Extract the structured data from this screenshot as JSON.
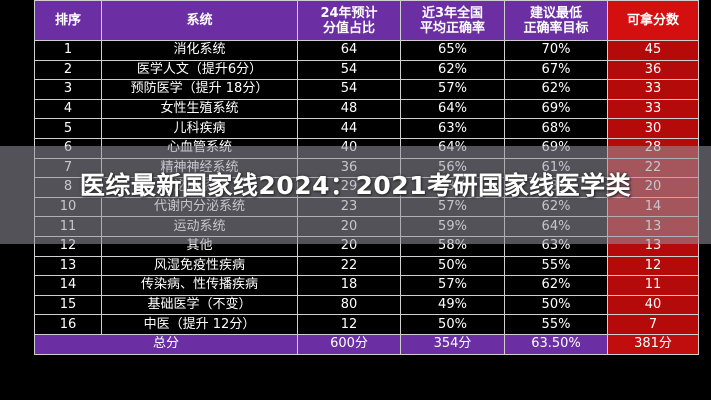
{
  "table": {
    "headers": [
      "排序",
      "系统",
      "24年预计\n分值占比",
      "近3年全国\n平均正确率",
      "建议最低\n正确率目标",
      "可拿分数"
    ],
    "rows": [
      [
        "1",
        "消化系统",
        "64",
        "65%",
        "70%",
        "45"
      ],
      [
        "2",
        "医学人文（提升6分）",
        "54",
        "62%",
        "67%",
        "36"
      ],
      [
        "3",
        "预防医学（提升 18分）",
        "54",
        "57%",
        "62%",
        "33"
      ],
      [
        "4",
        "女性生殖系统",
        "48",
        "64%",
        "69%",
        "33"
      ],
      [
        "5",
        "儿科疾病",
        "44",
        "63%",
        "68%",
        "30"
      ],
      [
        "6",
        "心血管系统",
        "40",
        "64%",
        "69%",
        "28"
      ],
      [
        "7",
        "精神神经系统",
        "36",
        "56%",
        "61%",
        "22"
      ],
      [
        "8",
        "泌尿系统",
        "29",
        "63%",
        "68%",
        "20"
      ],
      [
        "10",
        "代谢内分泌系统",
        "23",
        "57%",
        "62%",
        "14"
      ],
      [
        "11",
        "运动系统",
        "20",
        "59%",
        "64%",
        "13"
      ],
      [
        "12",
        "其他",
        "20",
        "58%",
        "63%",
        "13"
      ],
      [
        "13",
        "风湿免疫性疾病",
        "22",
        "50%",
        "55%",
        "12"
      ],
      [
        "14",
        "传染病、性传播疾病",
        "18",
        "57%",
        "62%",
        "11"
      ],
      [
        "15",
        "基础医学（不变）",
        "80",
        "49%",
        "50%",
        "40"
      ],
      [
        "16",
        "中医（提升 12分）",
        "12",
        "50%",
        "55%",
        "7"
      ]
    ],
    "total": [
      "总分",
      "600分",
      "354分",
      "63.50%",
      "381分"
    ]
  },
  "banner": {
    "text": "医综最新国家线2024：2021考研国家线医学类"
  },
  "colors": {
    "header_purple": "#6b2fa3",
    "score_red": "#b50a0a",
    "background": "#000000"
  }
}
